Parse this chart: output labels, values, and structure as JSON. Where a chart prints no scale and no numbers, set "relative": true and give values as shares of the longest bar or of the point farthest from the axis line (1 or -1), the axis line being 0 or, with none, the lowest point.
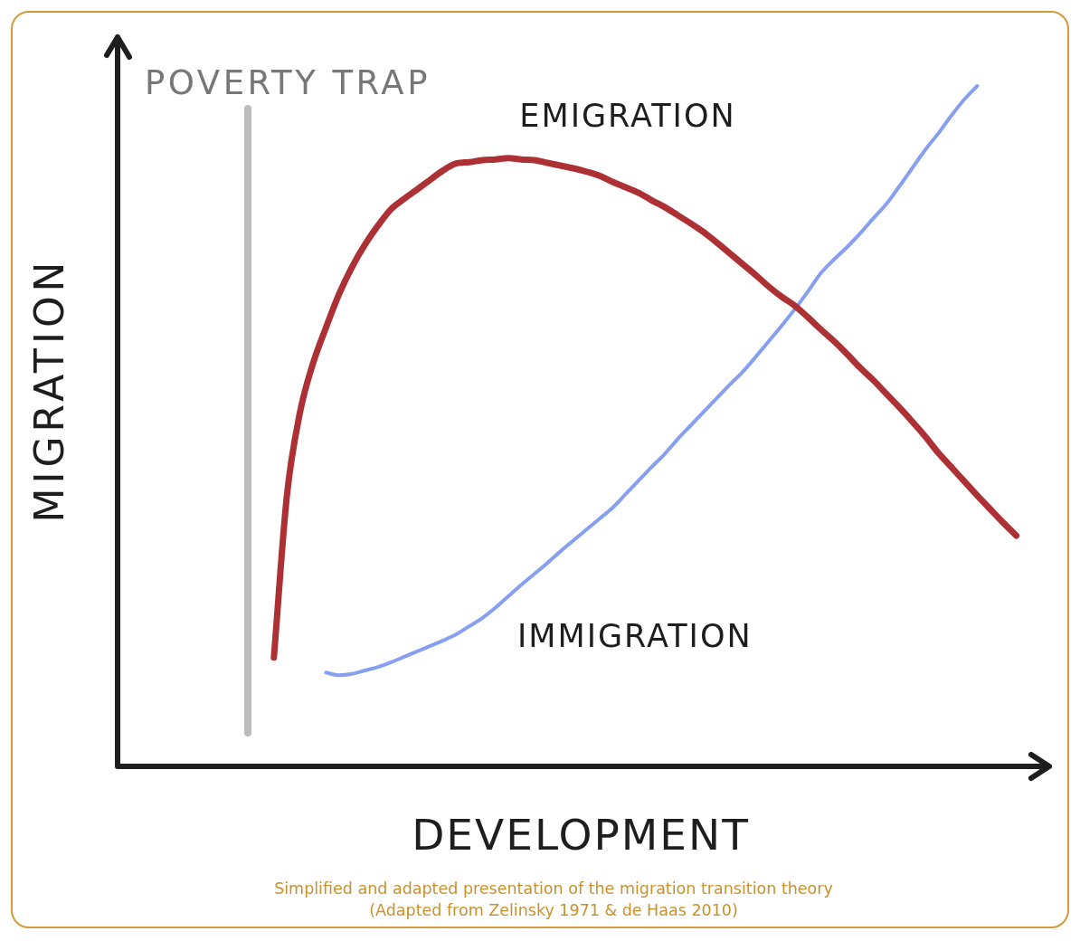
{
  "chart_data": {
    "type": "line",
    "relative": true,
    "xlabel": "DEVELOPMENT",
    "ylabel": "MIGRATION",
    "categories": [
      null,
      null,
      null,
      null,
      null,
      null,
      null,
      null,
      null,
      null,
      null,
      null,
      null,
      null,
      null,
      null,
      null,
      null,
      null,
      null,
      null,
      null,
      null,
      null,
      null,
      null,
      null,
      null,
      null,
      null,
      null,
      null,
      null,
      null,
      null,
      null,
      null,
      null,
      null,
      null,
      null,
      null,
      null,
      null,
      null,
      null,
      null,
      null,
      null,
      null,
      null,
      null,
      null,
      null,
      null,
      null,
      null,
      null,
      null,
      null,
      null,
      null,
      null,
      null,
      null,
      null,
      null,
      null,
      null,
      null,
      null
    ],
    "series": [
      {
        "name": "EMIGRATION",
        "color": "#ad3035",
        "values": [
          null,
          null,
          null,
          null,
          null,
          null,
          null,
          null,
          null,
          null,
          null,
          null,
          0.16,
          0.398,
          0.52,
          0.592,
          0.645,
          0.694,
          0.734,
          0.767,
          0.795,
          0.819,
          0.834,
          0.848,
          0.862,
          0.876,
          0.886,
          0.888,
          0.891,
          0.892,
          0.894,
          0.892,
          0.891,
          0.887,
          0.883,
          0.879,
          0.874,
          0.868,
          0.859,
          0.851,
          0.843,
          0.832,
          0.822,
          0.81,
          0.798,
          0.785,
          0.77,
          0.754,
          0.738,
          0.722,
          0.705,
          0.69,
          0.677,
          0.66,
          0.642,
          0.625,
          0.606,
          0.586,
          0.568,
          0.548,
          0.528,
          0.507,
          0.485,
          0.461,
          0.44,
          0.419,
          0.398,
          0.378,
          0.358,
          0.339,
          null
        ]
      },
      {
        "name": "IMMIGRATION",
        "color": "#879ff0",
        "values": [
          null,
          null,
          null,
          null,
          null,
          null,
          null,
          null,
          null,
          null,
          null,
          null,
          null,
          null,
          null,
          null,
          0.138,
          0.134,
          0.136,
          0.141,
          0.146,
          0.153,
          0.161,
          0.169,
          0.177,
          0.185,
          0.194,
          0.206,
          0.218,
          0.233,
          0.25,
          0.267,
          0.283,
          0.299,
          0.316,
          0.332,
          0.348,
          0.364,
          0.38,
          0.4,
          0.42,
          0.44,
          0.459,
          0.481,
          0.501,
          0.521,
          0.541,
          0.561,
          0.58,
          0.602,
          0.625,
          0.648,
          0.672,
          0.698,
          0.725,
          0.745,
          0.763,
          0.783,
          0.805,
          0.826,
          0.852,
          0.879,
          0.906,
          0.93,
          0.956,
          0.98,
          1.0,
          null,
          null,
          null,
          null
        ]
      }
    ],
    "annotations": [
      "POVERTY TRAP",
      "Simplified and adapted presentation of the migration transition theory",
      "(Adapted from Zelinsky 1971 & de Haas 2010)"
    ],
    "legend": false,
    "grid": false,
    "marker": "none",
    "line_style": "solid",
    "tick_labels": false
  }
}
